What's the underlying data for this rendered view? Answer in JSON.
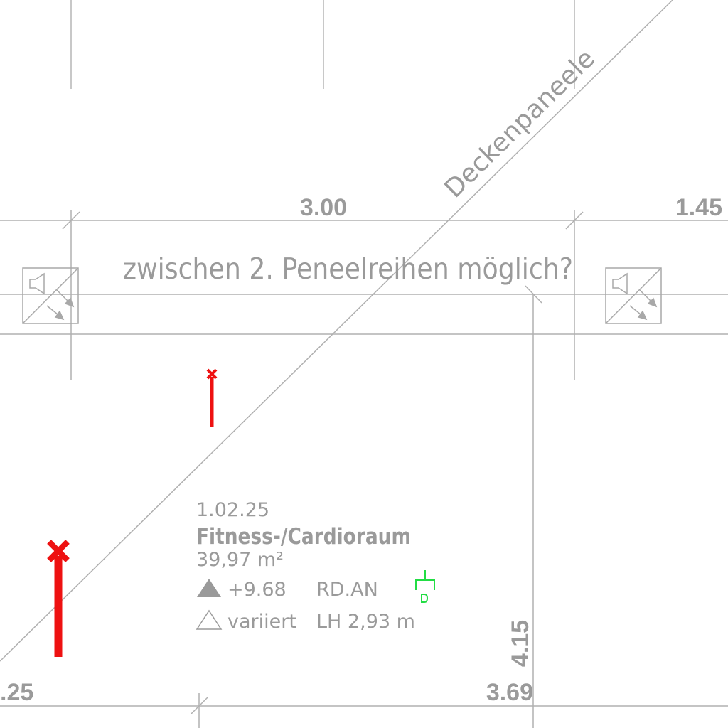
{
  "dimensions": {
    "top_middle": "3.00",
    "top_right": "1.45",
    "bottom_left": ".25",
    "bottom_right": "3.69",
    "vertical_right": "4.15"
  },
  "annotations": {
    "diagonal_label": "Deckenpaneele",
    "question": "zwischen 2. Peneelreihen möglich?"
  },
  "room": {
    "number": "1.02.25",
    "name": "Fitness-/Cardioraum",
    "area": "39,97 m²",
    "level_top": "+9.68",
    "level_bottom": "variiert",
    "finish": "RD.AN",
    "clear_height": "LH 2,93 m"
  },
  "symbols": {
    "speaker_left": "speaker-icon",
    "speaker_right": "speaker-icon",
    "detector": "smoke-detector-icon",
    "marker_small": "red-cross-marker",
    "marker_large": "red-cross-marker"
  },
  "colors": {
    "line": "#b0b0b0",
    "text": "#9a9a9a",
    "marker": "#ee1111",
    "detector": "#22dd44"
  }
}
